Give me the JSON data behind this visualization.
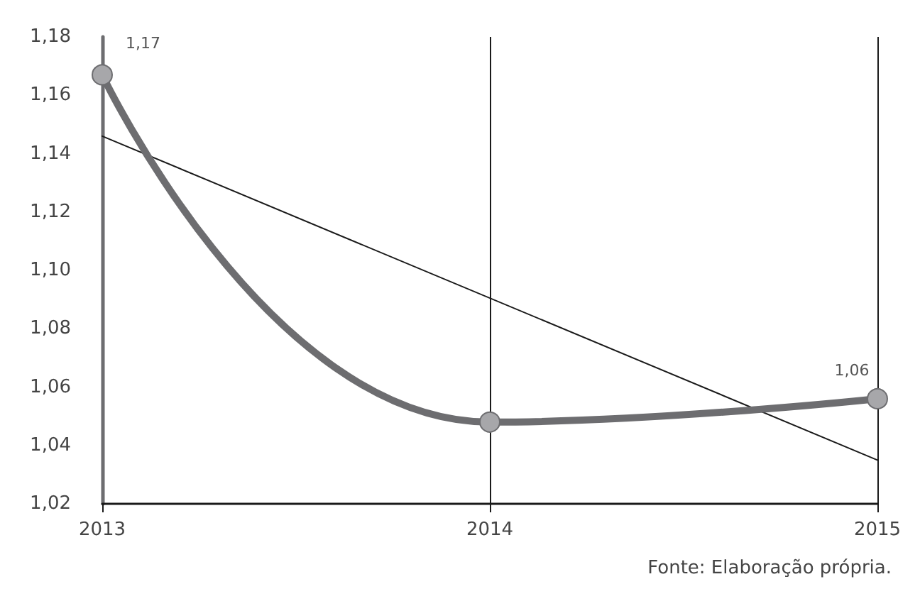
{
  "chart_data": {
    "type": "line",
    "x": [
      2013,
      2014,
      2015
    ],
    "series": [
      {
        "color": "#6d6d70",
        "values": [
          1.167,
          1.048,
          1.056
        ],
        "value_labels": [
          "1,17",
          null,
          "1,06"
        ],
        "marker": "circle"
      },
      {
        "type": "line",
        "color": "#1a1a1a",
        "x": [
          2013,
          2015
        ],
        "values": [
          1.146,
          1.035
        ],
        "marker": "none"
      }
    ],
    "xlim": [
      2013,
      2015
    ],
    "xticks": [
      2013,
      2014,
      2015
    ],
    "ylim": [
      1.02,
      1.18
    ],
    "yticks": [
      {
        "value": 1.02,
        "label": "1,02"
      },
      {
        "value": 1.04,
        "label": "1,04"
      },
      {
        "value": 1.06,
        "label": "1,06"
      },
      {
        "value": 1.08,
        "label": "1,08"
      },
      {
        "value": 1.1,
        "label": "1,10"
      },
      {
        "value": 1.12,
        "label": "1,12"
      },
      {
        "value": 1.14,
        "label": "1,14"
      },
      {
        "value": 1.16,
        "label": "1,16"
      },
      {
        "value": 1.18,
        "label": "1,18"
      }
    ],
    "grid": "x",
    "annotations": [
      "Fonte: Elaboração própria."
    ]
  }
}
